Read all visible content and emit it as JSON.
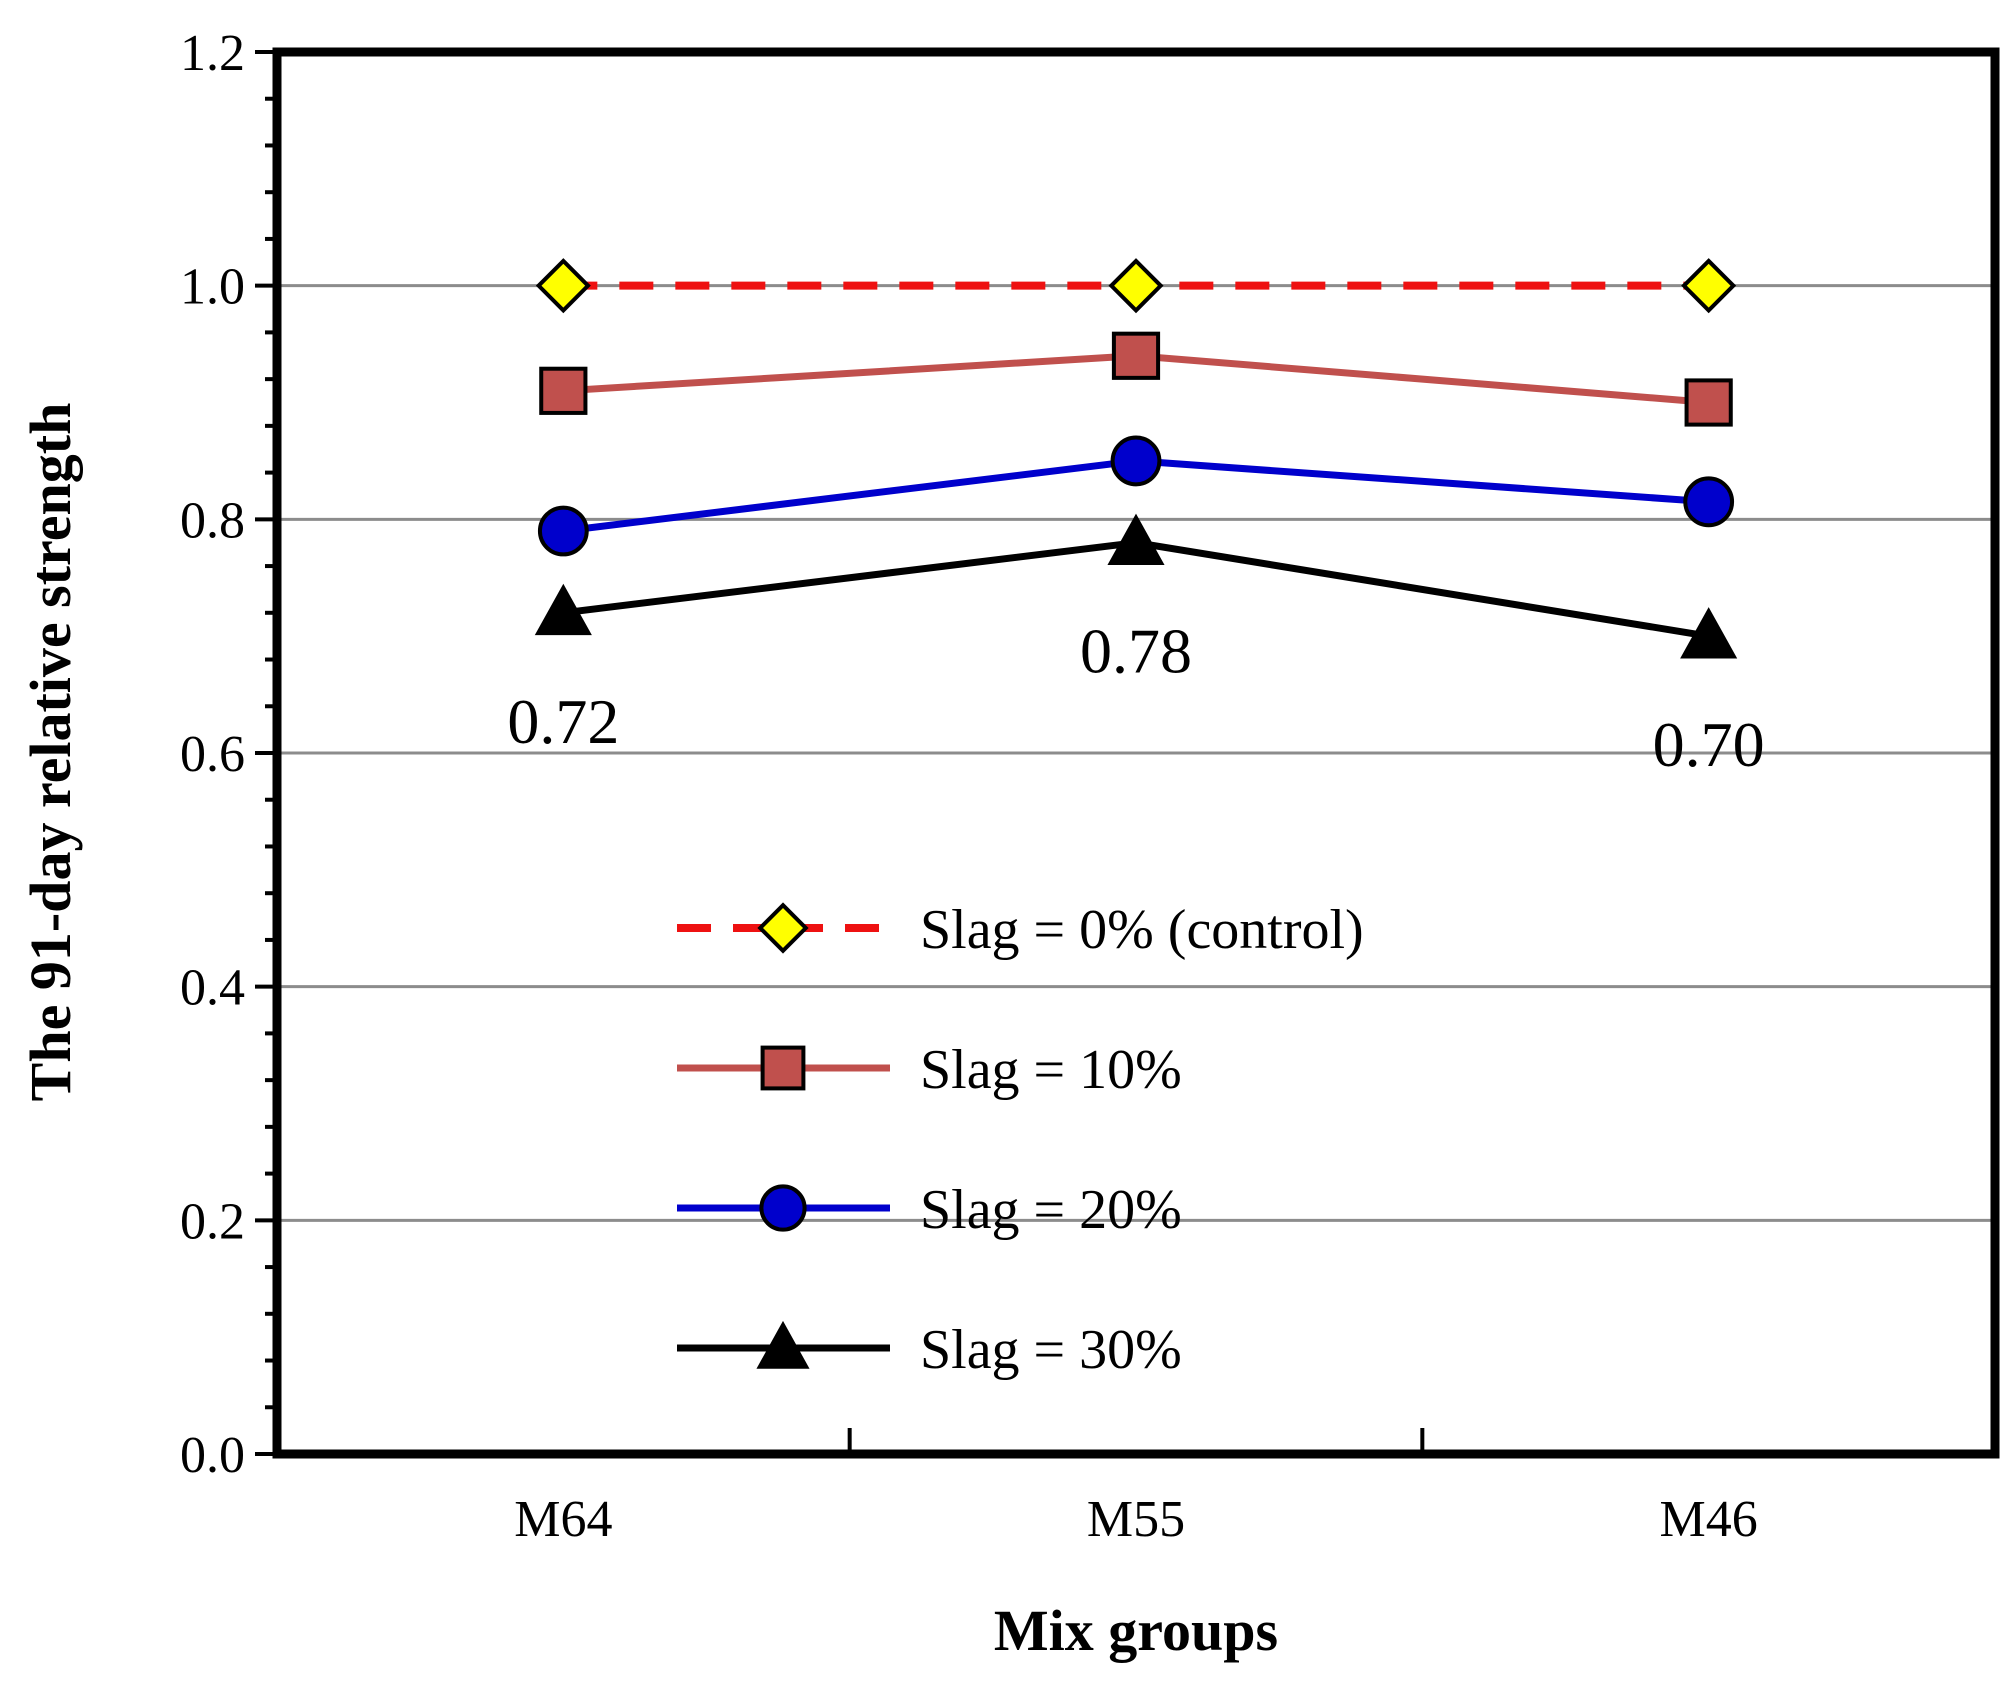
{
  "chart_data": {
    "type": "line",
    "title": "",
    "xlabel": "Mix groups",
    "ylabel": "The 91-day relative strength",
    "categories": [
      "M64",
      "M55",
      "M46"
    ],
    "ylim": [
      0,
      1.2
    ],
    "ymajor_ticks": [
      0.0,
      0.2,
      0.4,
      0.6,
      0.8,
      1.0,
      1.2
    ],
    "ytick_labels": [
      "0.0",
      "0.2",
      "0.4",
      "0.6",
      "0.8",
      "1.0",
      "1.2"
    ],
    "yminor_step": 0.04,
    "grid": "horizontal major",
    "legend_position": "center-left inside plot",
    "series": [
      {
        "name": "Slag = 0% (control)",
        "values": [
          1.0,
          1.0,
          1.0
        ],
        "color": "#ee1111",
        "marker": "diamond",
        "marker_color": "#ffff00",
        "line_style": "dashed"
      },
      {
        "name": "Slag = 10%",
        "values": [
          0.91,
          0.94,
          0.9
        ],
        "color": "#c0504d",
        "marker": "square",
        "marker_color": "#c0504d",
        "line_style": "solid"
      },
      {
        "name": "Slag = 20%",
        "values": [
          0.79,
          0.85,
          0.815
        ],
        "color": "#0000cc",
        "marker": "circle",
        "marker_color": "#0000cc",
        "line_style": "solid"
      },
      {
        "name": "Slag = 30%",
        "values": [
          0.72,
          0.78,
          0.7
        ],
        "color": "#000000",
        "marker": "triangle",
        "marker_color": "#000000",
        "line_style": "solid"
      }
    ],
    "annotations": [
      {
        "text": "0.72",
        "category": "M64",
        "series": "Slag = 30%"
      },
      {
        "text": "0.78",
        "category": "M55",
        "series": "Slag = 30%"
      },
      {
        "text": "0.70",
        "category": "M46",
        "series": "Slag = 30%"
      }
    ]
  }
}
